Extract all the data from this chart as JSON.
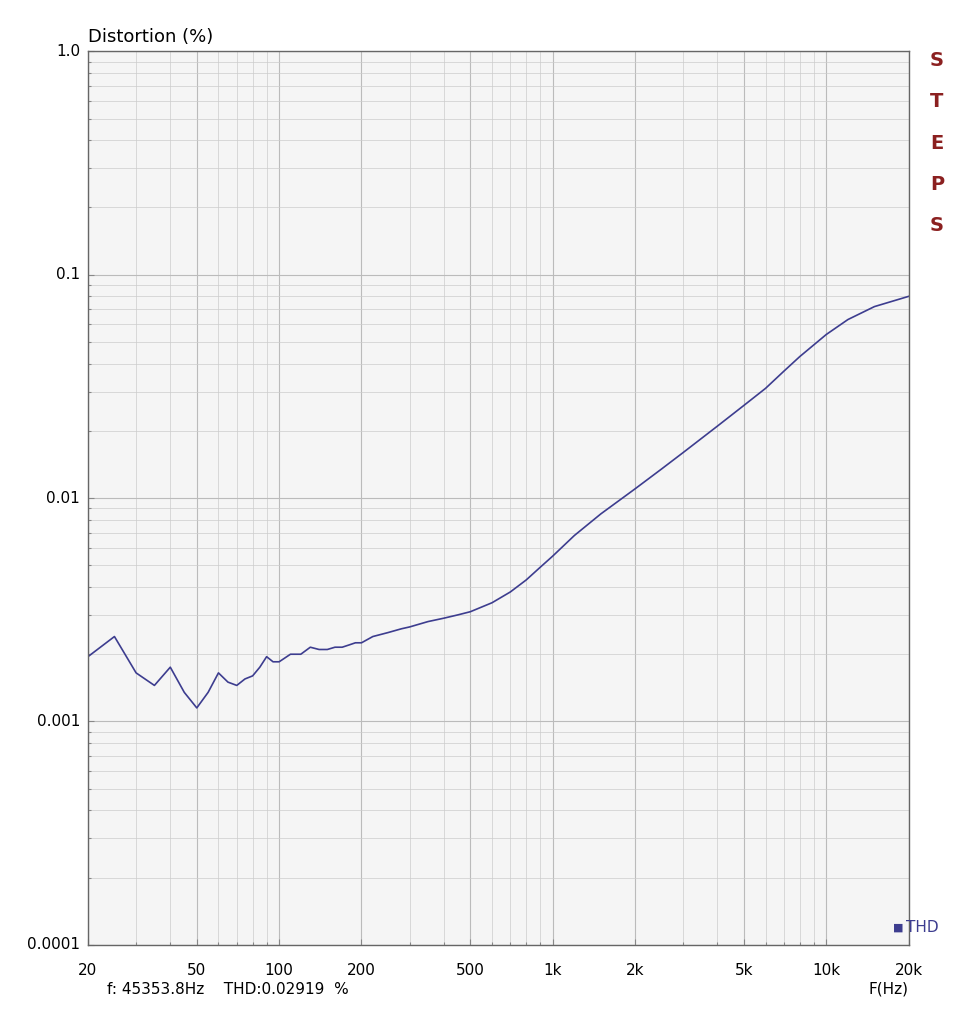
{
  "title": "Distortion (%)",
  "xlabel": "F(Hz)",
  "xmin": 20,
  "xmax": 20000,
  "ymin": 0.0001,
  "ymax": 1.0,
  "annotation_bottom": "f: 45353.8Hz    THD:0.02919  %",
  "legend_label": "THD",
  "legend_color": "#3d3d8f",
  "line_color": "#3d3d8f",
  "steps_color": "#8b2020",
  "bg_color": "#f5f5f5",
  "grid_color_major": "#bbbbbb",
  "grid_color_minor": "#cccccc",
  "xtick_labels": [
    "20",
    "50",
    "100",
    "200",
    "500",
    "1k",
    "2k",
    "5k",
    "10k",
    "20k"
  ],
  "xtick_values": [
    20,
    50,
    100,
    200,
    500,
    1000,
    2000,
    5000,
    10000,
    20000
  ],
  "ytick_labels": [
    "0.0001",
    "0.001",
    "0.01",
    "0.1",
    "1.0"
  ],
  "ytick_values": [
    0.0001,
    0.001,
    0.01,
    0.1,
    1.0
  ],
  "curve_x": [
    20,
    25,
    30,
    35,
    40,
    45,
    50,
    55,
    60,
    65,
    70,
    75,
    80,
    85,
    90,
    95,
    100,
    110,
    120,
    130,
    140,
    150,
    160,
    170,
    180,
    190,
    200,
    220,
    250,
    280,
    300,
    350,
    400,
    450,
    500,
    600,
    700,
    800,
    900,
    1000,
    1200,
    1500,
    2000,
    2500,
    3000,
    4000,
    5000,
    6000,
    7000,
    8000,
    10000,
    12000,
    15000,
    20000
  ],
  "curve_y": [
    0.00195,
    0.0024,
    0.00165,
    0.00145,
    0.00175,
    0.00135,
    0.00115,
    0.00135,
    0.00165,
    0.0015,
    0.00145,
    0.00155,
    0.0016,
    0.00175,
    0.00195,
    0.00185,
    0.00185,
    0.002,
    0.002,
    0.00215,
    0.0021,
    0.0021,
    0.00215,
    0.00215,
    0.0022,
    0.00225,
    0.00225,
    0.0024,
    0.0025,
    0.0026,
    0.00265,
    0.0028,
    0.0029,
    0.003,
    0.0031,
    0.0034,
    0.0038,
    0.0043,
    0.0049,
    0.0055,
    0.0068,
    0.0085,
    0.011,
    0.0135,
    0.016,
    0.021,
    0.026,
    0.031,
    0.037,
    0.043,
    0.054,
    0.063,
    0.072,
    0.08
  ]
}
